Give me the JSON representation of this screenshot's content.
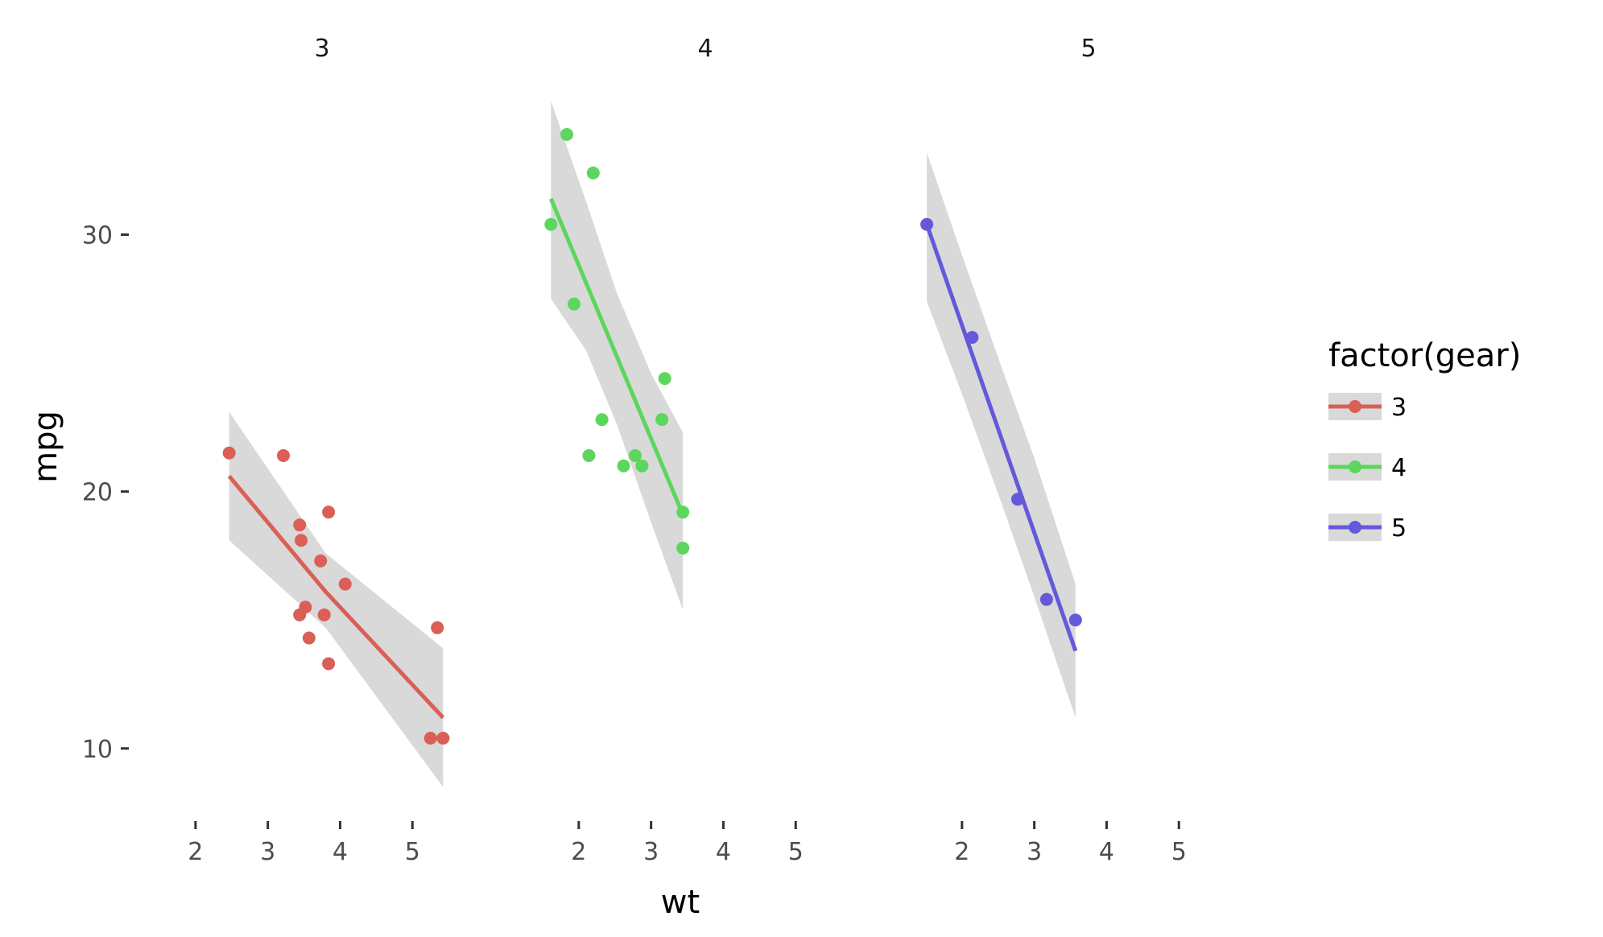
{
  "chart_data": {
    "type": "scatter",
    "xlabel": "wt",
    "ylabel": "mpg",
    "x_range": [
      1.3,
      6.2
    ],
    "y_range": [
      7.8,
      36.0
    ],
    "x_ticks": [
      2,
      3,
      4,
      5
    ],
    "y_ticks": [
      10,
      20,
      30
    ],
    "grid": false,
    "legend": {
      "title": "factor(gear)",
      "position": "right",
      "items": [
        "3",
        "4",
        "5"
      ]
    },
    "ribbon_color": "#d9d9d9",
    "panels": [
      {
        "name": "3",
        "color": "#d95f57",
        "points": [
          [
            2.465,
            21.5
          ],
          [
            3.215,
            21.4
          ],
          [
            3.44,
            18.7
          ],
          [
            3.46,
            18.1
          ],
          [
            3.57,
            14.3
          ],
          [
            3.44,
            15.2
          ],
          [
            3.52,
            15.5
          ],
          [
            3.73,
            17.3
          ],
          [
            3.78,
            15.2
          ],
          [
            3.84,
            19.2
          ],
          [
            3.84,
            13.3
          ],
          [
            4.07,
            16.4
          ],
          [
            5.25,
            10.4
          ],
          [
            5.424,
            10.4
          ],
          [
            5.345,
            14.7
          ]
        ],
        "fit": {
          "x": [
            2.465,
            3.8,
            5.424
          ],
          "y": [
            20.6,
            16.1,
            11.2
          ]
        },
        "ribbon": {
          "x": [
            2.465,
            3.8,
            5.424
          ],
          "lower": [
            18.1,
            14.7,
            8.5
          ],
          "upper": [
            23.1,
            17.6,
            13.9
          ]
        }
      },
      {
        "name": "4",
        "color": "#5cd65c",
        "points": [
          [
            2.2,
            32.4
          ],
          [
            1.615,
            30.4
          ],
          [
            1.835,
            33.9
          ],
          [
            1.935,
            27.3
          ],
          [
            2.14,
            21.4
          ],
          [
            2.32,
            22.8
          ],
          [
            2.62,
            21.0
          ],
          [
            2.78,
            21.4
          ],
          [
            2.875,
            21.0
          ],
          [
            3.15,
            22.8
          ],
          [
            3.19,
            24.4
          ],
          [
            3.44,
            19.2
          ],
          [
            3.44,
            17.8
          ]
        ],
        "fit": {
          "x": [
            1.615,
            3.44
          ],
          "y": [
            31.4,
            19.1
          ]
        },
        "ribbon": {
          "x": [
            1.615,
            2.1,
            2.53,
            3.0,
            3.44
          ],
          "lower": [
            27.5,
            25.5,
            22.6,
            18.8,
            15.4
          ],
          "upper": [
            35.2,
            31.3,
            27.7,
            24.6,
            22.3
          ]
        }
      },
      {
        "name": "5",
        "color": "#6459db",
        "points": [
          [
            1.513,
            30.4
          ],
          [
            2.14,
            26.0
          ],
          [
            2.77,
            19.7
          ],
          [
            3.17,
            15.8
          ],
          [
            3.57,
            15.0
          ]
        ],
        "fit": {
          "x": [
            1.513,
            3.57
          ],
          "y": [
            30.4,
            13.8
          ]
        },
        "ribbon": {
          "x": [
            1.513,
            2.0,
            2.54,
            3.0,
            3.57
          ],
          "lower": [
            27.4,
            23.8,
            19.6,
            15.9,
            11.2
          ],
          "upper": [
            33.2,
            29.2,
            24.9,
            21.3,
            16.4
          ]
        }
      }
    ]
  }
}
